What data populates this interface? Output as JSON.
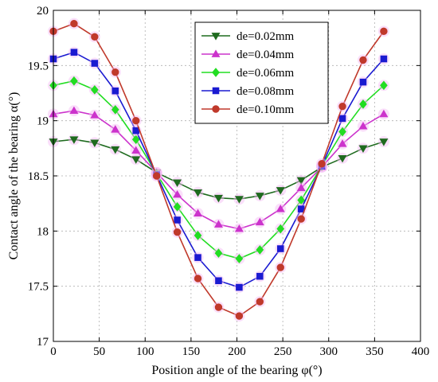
{
  "chart_data": {
    "type": "line",
    "title": "",
    "xlabel": "Position angle of the bearing φ(°)",
    "ylabel": "Contact angle of the bearing α(°)",
    "xlim": [
      0,
      400
    ],
    "ylim": [
      17,
      20
    ],
    "xticks": [
      0,
      50,
      100,
      150,
      200,
      250,
      300,
      350,
      400
    ],
    "xtick_labels": [
      "0",
      "50",
      "100",
      "150",
      "200",
      "250",
      "300",
      "350",
      "400"
    ],
    "yticks": [
      17,
      17.5,
      18,
      18.5,
      19,
      19.5,
      20
    ],
    "ytick_labels": [
      "17",
      "17.5",
      "18",
      "18.5",
      "19",
      "19.5",
      "20"
    ],
    "grid": true,
    "legend_position": "top-right",
    "x": [
      0,
      22.5,
      45,
      67.5,
      90,
      112.5,
      135,
      157.5,
      180,
      202.5,
      225,
      247.5,
      270,
      292.5,
      315,
      337.5,
      360
    ],
    "series": [
      {
        "name": "de=0.02mm",
        "color": "#1f6b1f",
        "marker": "triangle-down",
        "values": [
          18.81,
          18.83,
          18.8,
          18.74,
          18.65,
          18.53,
          18.44,
          18.35,
          18.3,
          18.29,
          18.32,
          18.37,
          18.46,
          18.58,
          18.66,
          18.75,
          18.81
        ]
      },
      {
        "name": "de=0.04mm",
        "color": "#cc33cc",
        "marker": "triangle-up",
        "values": [
          19.06,
          19.09,
          19.05,
          18.92,
          18.73,
          18.53,
          18.33,
          18.16,
          18.06,
          18.02,
          18.08,
          18.2,
          18.39,
          18.58,
          18.79,
          18.95,
          19.06
        ]
      },
      {
        "name": "de=0.06mm",
        "color": "#22dd22",
        "marker": "diamond",
        "values": [
          19.32,
          19.36,
          19.28,
          19.1,
          18.83,
          18.52,
          18.22,
          17.96,
          17.8,
          17.75,
          17.83,
          18.02,
          18.28,
          18.59,
          18.9,
          19.15,
          19.32
        ]
      },
      {
        "name": "de=0.08mm",
        "color": "#1a1ad1",
        "marker": "square",
        "values": [
          19.56,
          19.62,
          19.52,
          19.27,
          18.91,
          18.51,
          18.1,
          17.76,
          17.55,
          17.49,
          17.59,
          17.84,
          18.2,
          18.59,
          19.02,
          19.35,
          19.56
        ]
      },
      {
        "name": "de=0.10mm",
        "color": "#c0392b",
        "marker": "circle",
        "values": [
          19.81,
          19.88,
          19.76,
          19.44,
          19.0,
          18.5,
          17.99,
          17.57,
          17.31,
          17.23,
          17.36,
          17.67,
          18.11,
          18.61,
          19.13,
          19.55,
          19.81
        ]
      }
    ]
  }
}
